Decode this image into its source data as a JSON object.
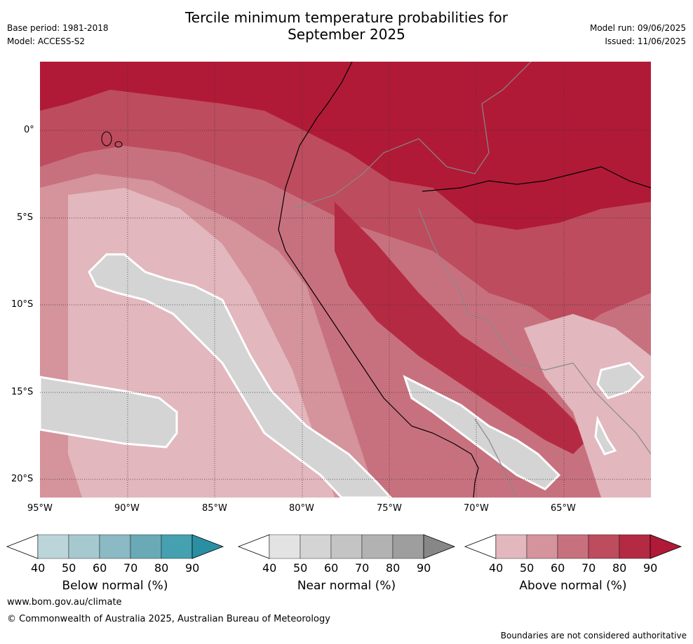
{
  "header": {
    "title_line1": "Tercile minimum temperature probabilities for",
    "title_line2": "September 2025",
    "base_period": "Base period: 1981-2018",
    "model": "Model: ACCESS-S2",
    "model_run": "Model run: 09/06/2025",
    "issued": "Issued: 11/06/2025"
  },
  "map": {
    "lat_labels": [
      "0°",
      "5°S",
      "10°S",
      "15°S",
      "20°S"
    ],
    "lon_labels": [
      "95°W",
      "90°W",
      "85°W",
      "80°W",
      "75°W",
      "70°W",
      "65°W"
    ],
    "grid": true
  },
  "colorbars": [
    {
      "label": "Below normal (%)",
      "ticks": [
        "40",
        "50",
        "60",
        "70",
        "80",
        "90"
      ],
      "colors": [
        "#ffffff",
        "#bcd5db",
        "#a6c8cf",
        "#8bb9c4",
        "#6aa9b6",
        "#45a0b0",
        "#2b8fa3"
      ]
    },
    {
      "label": "Near normal (%)",
      "ticks": [
        "40",
        "50",
        "60",
        "70",
        "80",
        "90"
      ],
      "colors": [
        "#ffffff",
        "#e3e3e3",
        "#d4d4d4",
        "#c4c4c4",
        "#b2b2b2",
        "#9e9e9e",
        "#878787"
      ]
    },
    {
      "label": "Above normal (%)",
      "ticks": [
        "40",
        "50",
        "60",
        "70",
        "80",
        "90"
      ],
      "colors": [
        "#ffffff",
        "#e2b7bd",
        "#d5939c",
        "#c8717e",
        "#bd4c5e",
        "#b52a43",
        "#b01a37"
      ]
    }
  ],
  "footer": {
    "website": "www.bom.gov.au/climate",
    "copyright": "© Commonwealth of Australia 2025, Australian Bureau of Meteorology",
    "disclaimer": "Boundaries are not considered authoritative"
  }
}
